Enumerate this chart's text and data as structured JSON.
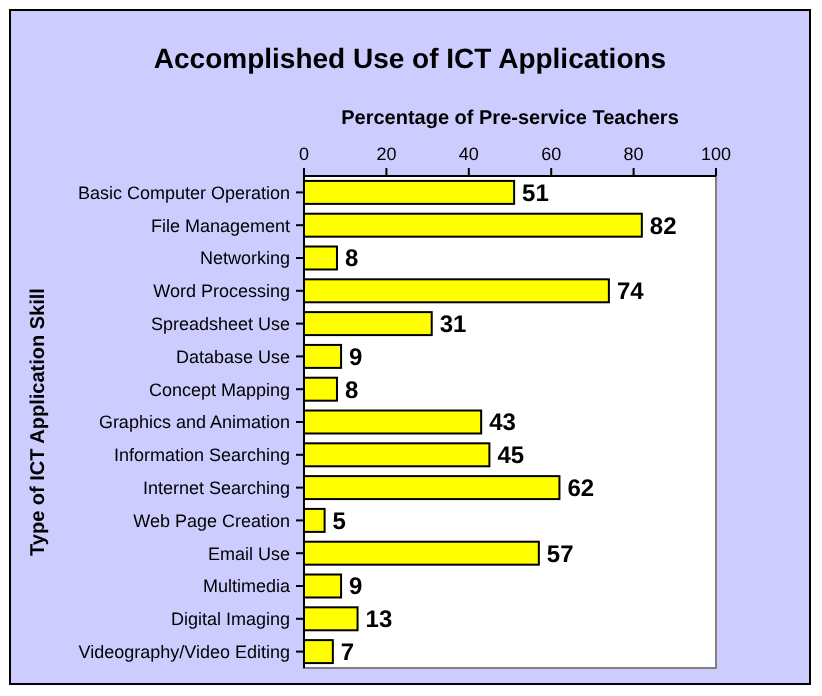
{
  "chart_data": {
    "type": "bar",
    "orientation": "horizontal",
    "title": "Accomplished Use of ICT Applications",
    "xlabel": "Percentage of Pre-service Teachers",
    "ylabel": "Type of ICT Application Skill",
    "categories": [
      "Basic Computer Operation",
      "File Management",
      "Networking",
      "Word Processing",
      "Spreadsheet Use",
      "Database Use",
      "Concept Mapping",
      "Graphics and Animation",
      "Information Searching",
      "Internet Searching",
      "Web Page Creation",
      "Email Use",
      "Multimedia",
      "Digital Imaging",
      "Videography/Video Editing"
    ],
    "values": [
      51,
      82,
      8,
      74,
      31,
      9,
      8,
      43,
      45,
      62,
      5,
      57,
      9,
      13,
      7
    ],
    "color": "#ffff00",
    "xlim": [
      0,
      100
    ],
    "xticks": [
      0,
      20,
      40,
      60,
      80,
      100
    ],
    "data_labels": true
  }
}
